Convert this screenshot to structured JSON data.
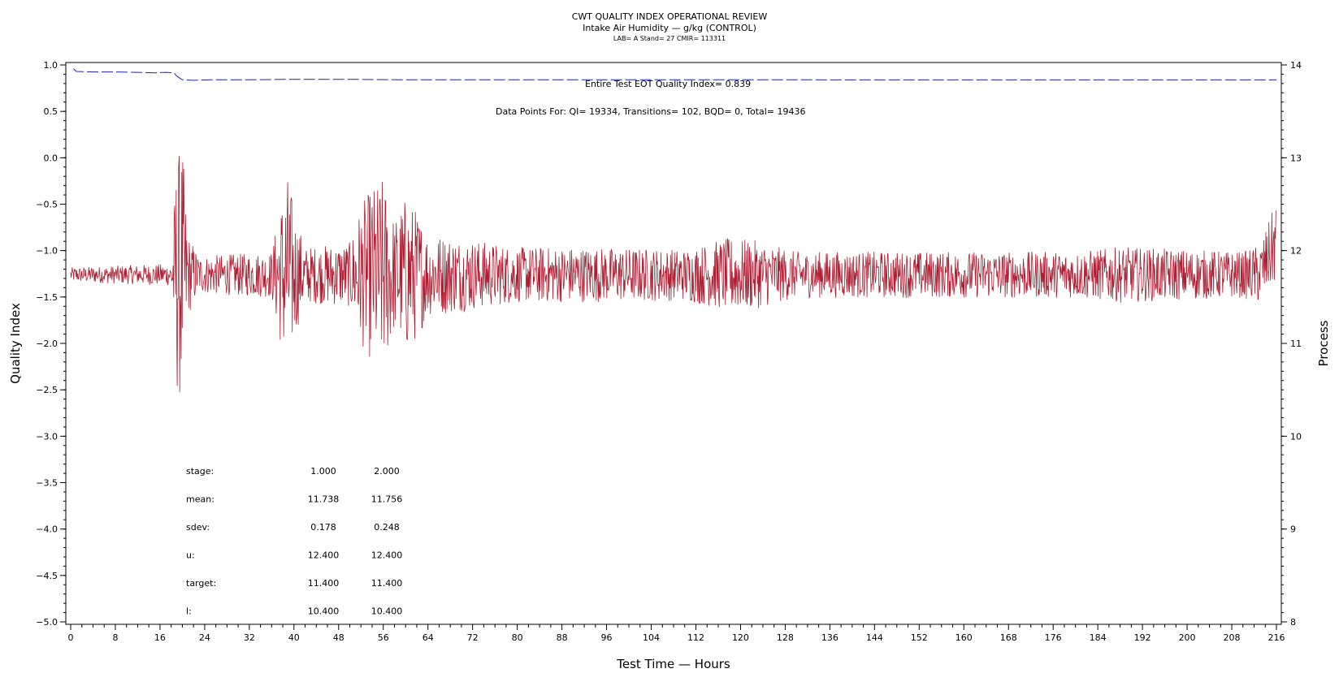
{
  "chart_data": {
    "type": "line",
    "title": "CWT QUALITY INDEX OPERATIONAL REVIEW",
    "subtitle": "Intake Air Humidity — g/kg (CONTROL)",
    "subtitle2": "LAB= A Stand= 27 CMIR= 113311",
    "xlabel": "Test Time — Hours",
    "ylabel": "Quality Index",
    "y2label": "Process",
    "xlim": [
      0,
      216
    ],
    "ylim": [
      -5.0,
      1.0
    ],
    "y2lim": [
      8,
      14
    ],
    "x_ticks": [
      0,
      8,
      16,
      24,
      32,
      40,
      48,
      56,
      64,
      72,
      80,
      88,
      96,
      104,
      112,
      120,
      128,
      136,
      144,
      152,
      160,
      168,
      176,
      184,
      192,
      200,
      208,
      216
    ],
    "x_tick_labels": [
      "0",
      "8",
      "16",
      "24",
      "32",
      "40",
      "48",
      "56",
      "64",
      "72",
      "80",
      "88",
      "96",
      "104",
      "112",
      "120",
      "128",
      "136",
      "144",
      "152",
      "160",
      "168",
      "176",
      "184",
      "192",
      "200",
      "208",
      "216"
    ],
    "y_ticks": [
      1.0,
      0.5,
      0.0,
      -0.5,
      -1.0,
      -1.5,
      -2.0,
      -2.5,
      -3.0,
      -3.5,
      -4.0,
      -4.5,
      -5.0
    ],
    "y_tick_labels": [
      "1.0",
      "0.5",
      "0.0",
      "−0.5",
      "−1.0",
      "−1.5",
      "−2.0",
      "−2.5",
      "−3.0",
      "−3.5",
      "−4.0",
      "−4.5",
      "−5.0"
    ],
    "y2_ticks": [
      14,
      13,
      12,
      11,
      10,
      9,
      8
    ],
    "y2_tick_labels": [
      "14",
      "13",
      "12",
      "11",
      "10",
      "9",
      "8"
    ],
    "grid": false,
    "annotations": {
      "eot_qi": "Entire Test EOT Quality Index=   0.839",
      "data_points": "Data Points For: QI= 19334, Transitions=   102, BQD=     0, Total= 19436"
    },
    "stats": {
      "header": [
        "",
        "1.000",
        "2.000"
      ],
      "rows": [
        {
          "label": "stage:",
          "v1": "1.000",
          "v2": "2.000"
        },
        {
          "label": "mean:",
          "v1": "11.738",
          "v2": "11.756"
        },
        {
          "label": "sdev:",
          "v1": "0.178",
          "v2": "0.248"
        },
        {
          "label": "u:",
          "v1": "12.400",
          "v2": "12.400"
        },
        {
          "label": "target:",
          "v1": "11.400",
          "v2": "11.400"
        },
        {
          "label": "l:",
          "v1": "10.400",
          "v2": "10.400"
        }
      ]
    },
    "series": [
      {
        "role": "quality-index",
        "color": "#1f1fb0",
        "axis": "left",
        "points": [
          [
            0.5,
            0.96
          ],
          [
            1,
            0.93
          ],
          [
            4,
            0.925
          ],
          [
            8,
            0.925
          ],
          [
            12,
            0.92
          ],
          [
            15,
            0.915
          ],
          [
            17,
            0.92
          ],
          [
            18.5,
            0.915
          ],
          [
            19,
            0.88
          ],
          [
            20,
            0.84
          ],
          [
            22,
            0.835
          ],
          [
            25,
            0.84
          ],
          [
            30,
            0.84
          ],
          [
            40,
            0.845
          ],
          [
            50,
            0.845
          ],
          [
            60,
            0.84
          ],
          [
            70,
            0.84
          ],
          [
            80,
            0.84
          ],
          [
            100,
            0.84
          ],
          [
            130,
            0.84
          ],
          [
            160,
            0.839
          ],
          [
            190,
            0.839
          ],
          [
            216,
            0.839
          ]
        ]
      },
      {
        "role": "process",
        "color": "#b01e32",
        "axis": "right",
        "base_mean": 11.74,
        "envelope": [
          [
            0,
            0.08
          ],
          [
            18,
            0.12
          ],
          [
            19,
            1.3
          ],
          [
            20,
            1.4
          ],
          [
            21,
            0.45
          ],
          [
            23,
            0.2
          ],
          [
            36,
            0.25
          ],
          [
            38,
            0.9
          ],
          [
            39,
            1.1
          ],
          [
            40,
            0.7
          ],
          [
            42,
            0.3
          ],
          [
            50,
            0.35
          ],
          [
            52,
            0.75
          ],
          [
            54,
            0.95
          ],
          [
            56,
            1.05
          ],
          [
            58,
            0.6
          ],
          [
            60,
            0.85
          ],
          [
            62,
            0.7
          ],
          [
            64,
            0.45
          ],
          [
            70,
            0.4
          ],
          [
            80,
            0.3
          ],
          [
            90,
            0.3
          ],
          [
            110,
            0.28
          ],
          [
            118,
            0.4
          ],
          [
            122,
            0.38
          ],
          [
            130,
            0.25
          ],
          [
            180,
            0.25
          ],
          [
            188,
            0.3
          ],
          [
            210,
            0.25
          ],
          [
            214,
            0.35
          ],
          [
            216,
            0.45
          ]
        ]
      }
    ]
  },
  "colors": {
    "quality_index": "#1f1fb0",
    "process": "#b01e32",
    "axes": "#000000"
  }
}
